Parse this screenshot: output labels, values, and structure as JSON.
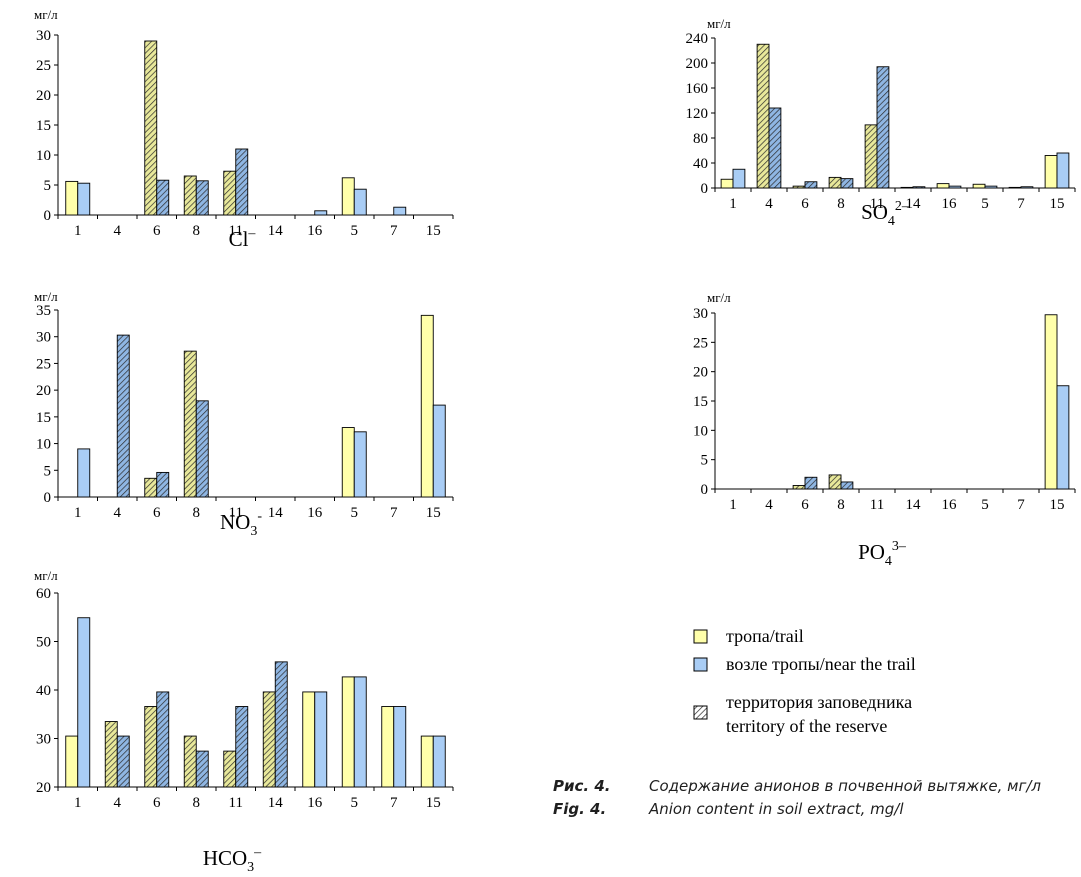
{
  "colors": {
    "trail": "#FFFFAA",
    "near_trail": "#A9CDF5",
    "reserve_yellow": "#E8E89A",
    "reserve_blue": "#8FB6E3",
    "hatch": "#2a2a2a"
  },
  "chart_data": [
    {
      "type": "bar",
      "ion_main": "Cl",
      "ion_sup": "–",
      "ion_sub": "",
      "ylabel": "мг/л",
      "ylim": [
        0,
        30
      ],
      "yticks": [
        0,
        5,
        10,
        15,
        20,
        25,
        30
      ],
      "categories": [
        "1",
        "4",
        "6",
        "8",
        "11",
        "14",
        "16",
        "5",
        "7",
        "15"
      ],
      "series": [
        {
          "role": "first",
          "values": [
            5.6,
            0,
            29,
            6.5,
            7.3,
            0,
            0,
            6.2,
            0,
            0
          ]
        },
        {
          "role": "second",
          "values": [
            5.3,
            0,
            5.8,
            5.7,
            11,
            0,
            0.7,
            4.3,
            1.3,
            0
          ]
        }
      ],
      "hatched_categories": [
        "4",
        "6",
        "8",
        "11",
        "14"
      ]
    },
    {
      "type": "bar",
      "ion_main": "SO",
      "ion_sup": "2–",
      "ion_sub": "4",
      "ylabel": "мг/л",
      "ylim": [
        0,
        240
      ],
      "yticks": [
        0,
        40,
        80,
        120,
        160,
        200,
        240
      ],
      "categories": [
        "1",
        "4",
        "6",
        "8",
        "11",
        "14",
        "16",
        "5",
        "7",
        "15"
      ],
      "series": [
        {
          "role": "first",
          "values": [
            14,
            230,
            3,
            17,
            101,
            1,
            7,
            6,
            1,
            52
          ]
        },
        {
          "role": "second",
          "values": [
            30,
            128,
            10,
            15,
            194,
            2,
            3,
            3,
            2,
            56
          ]
        }
      ],
      "hatched_categories": [
        "4",
        "6",
        "8",
        "11",
        "14"
      ]
    },
    {
      "type": "bar",
      "ion_main": "NO",
      "ion_sup": "-",
      "ion_sub": "3",
      "ylabel": "мг/л",
      "ylim": [
        0,
        35
      ],
      "yticks": [
        0,
        5,
        10,
        15,
        20,
        25,
        30,
        35
      ],
      "categories": [
        "1",
        "4",
        "6",
        "8",
        "11",
        "14",
        "16",
        "5",
        "7",
        "15"
      ],
      "series": [
        {
          "role": "first",
          "values": [
            0,
            0,
            3.5,
            27.3,
            0,
            0,
            0,
            13,
            0,
            34
          ]
        },
        {
          "role": "second",
          "values": [
            9,
            30.3,
            4.6,
            18,
            0,
            0,
            0,
            12.2,
            0,
            17.2
          ]
        }
      ],
      "hatched_categories": [
        "4",
        "6",
        "8",
        "11",
        "14"
      ]
    },
    {
      "type": "bar",
      "ion_main": "PO",
      "ion_sup": "3–",
      "ion_sub": "4",
      "ylabel": "мг/л",
      "ylim": [
        0,
        30
      ],
      "yticks": [
        0,
        5,
        10,
        15,
        20,
        25,
        30
      ],
      "categories": [
        "1",
        "4",
        "6",
        "8",
        "11",
        "14",
        "16",
        "5",
        "7",
        "15"
      ],
      "series": [
        {
          "role": "first",
          "values": [
            0,
            0,
            0.6,
            2.4,
            0,
            0,
            0,
            0,
            0,
            29.7
          ]
        },
        {
          "role": "second",
          "values": [
            0,
            0,
            2,
            1.2,
            0,
            0,
            0,
            0,
            0,
            17.6
          ]
        }
      ],
      "hatched_categories": [
        "4",
        "6",
        "8",
        "11",
        "14"
      ]
    },
    {
      "type": "bar",
      "ion_main": "HCO",
      "ion_sup": "–",
      "ion_sub": "3",
      "ylabel": "мг/л",
      "ylim": [
        20,
        60
      ],
      "yticks": [
        20,
        30,
        40,
        50,
        60
      ],
      "categories": [
        "1",
        "4",
        "6",
        "8",
        "11",
        "14",
        "16",
        "5",
        "7",
        "15"
      ],
      "series": [
        {
          "role": "first",
          "values": [
            30.5,
            33.5,
            36.6,
            30.5,
            27.4,
            39.6,
            39.6,
            42.7,
            36.6,
            30.5
          ]
        },
        {
          "role": "second",
          "values": [
            54.9,
            30.5,
            39.6,
            27.4,
            36.6,
            45.8,
            39.6,
            42.7,
            36.6,
            30.5
          ]
        }
      ],
      "hatched_categories": [
        "4",
        "6",
        "8",
        "11",
        "14"
      ]
    }
  ],
  "legend": [
    {
      "key": "trail",
      "label": "тропа/trail",
      "label2": ""
    },
    {
      "key": "near_trail",
      "label": "возле тропы/near the trail",
      "label2": ""
    },
    {
      "key": "reserve",
      "label": "территория заповедника",
      "label2": "territory of the reserve"
    }
  ],
  "caption": {
    "ru_label": "Рис. 4.",
    "ru_text": "Содержание анионов в почвенной вытяжке, мг/л",
    "en_label": "Fig. 4.",
    "en_text": "Anion content in soil extract, mg/l"
  }
}
